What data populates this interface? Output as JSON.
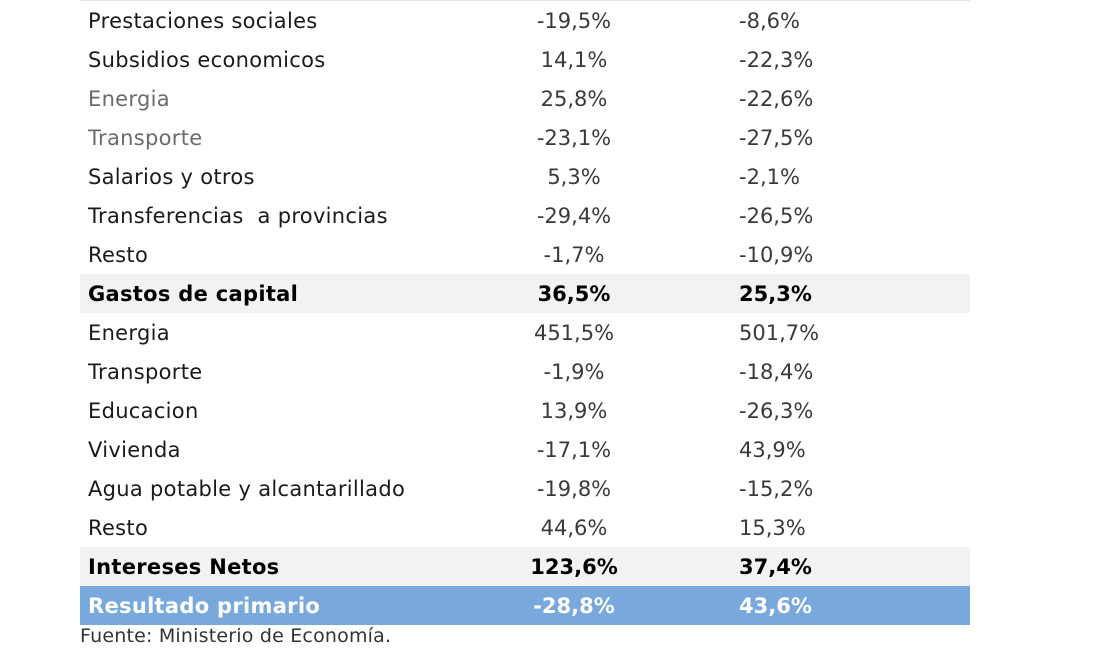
{
  "rows": [
    {
      "label": "Prestaciones sociales",
      "a": "-19,5%",
      "b": "-8,6%"
    },
    {
      "label": "Subsidios economicos",
      "a": "14,1%",
      "b": "-22,3%"
    },
    {
      "label": "Energia",
      "a": "25,8%",
      "b": "-22,6%"
    },
    {
      "label": "Transporte",
      "a": "-23,1%",
      "b": "-27,5%"
    },
    {
      "label": "Salarios y otros",
      "a": "5,3%",
      "b": "-2,1%"
    },
    {
      "label": "Transferencias  a provincias",
      "a": "-29,4%",
      "b": "-26,5%"
    },
    {
      "label": "Resto",
      "a": "-1,7%",
      "b": "-10,9%"
    },
    {
      "label": "Gastos de capital",
      "a": "36,5%",
      "b": "25,3%"
    },
    {
      "label": "Energia",
      "a": "451,5%",
      "b": "501,7%"
    },
    {
      "label": "Transporte",
      "a": "-1,9%",
      "b": "-18,4%"
    },
    {
      "label": "Educacion",
      "a": "13,9%",
      "b": "-26,3%"
    },
    {
      "label": "Vivienda",
      "a": "-17,1%",
      "b": "43,9%"
    },
    {
      "label": "Agua potable y alcantarillado",
      "a": "-19,8%",
      "b": "-15,2%"
    },
    {
      "label": "Resto",
      "a": "44,6%",
      "b": "15,3%"
    },
    {
      "label": "Intereses Netos",
      "a": "123,6%",
      "b": "37,4%"
    },
    {
      "label": "Resultado primario",
      "a": "-28,8%",
      "b": "43,6%"
    }
  ],
  "source": "Fuente: Ministerio de Economía.",
  "colors": {
    "header_row_bg": "#f2f2f2",
    "total_row_bg": "#79a9dc",
    "total_row_text": "#ffffff",
    "muted_text": "#6b6b6b"
  }
}
